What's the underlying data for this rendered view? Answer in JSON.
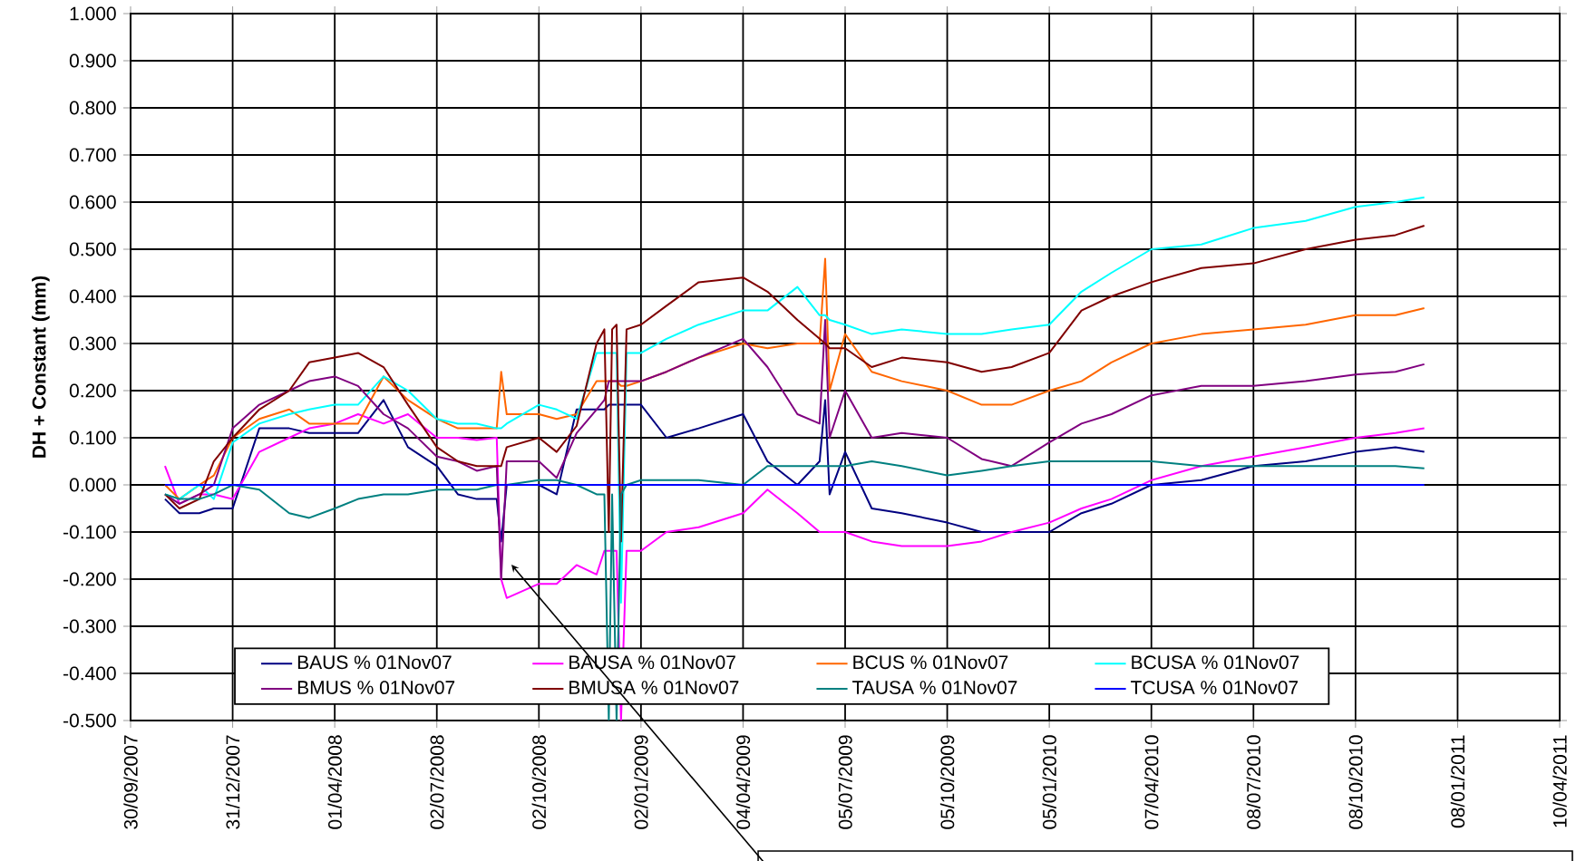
{
  "chart_data": {
    "type": "line",
    "ylabel": "DH + Constant (mm)",
    "x": [
      "2007-10-31",
      "2007-11-13",
      "2007-12-01",
      "2007-12-14",
      "2007-12-31",
      "2008-01-24",
      "2008-02-20",
      "2008-03-09",
      "2008-04-01",
      "2008-04-22",
      "2008-05-15",
      "2008-06-06",
      "2008-07-02",
      "2008-07-21",
      "2008-08-07",
      "2008-08-25",
      "2008-08-29",
      "2008-09-03",
      "2008-10-02",
      "2008-10-18",
      "2008-11-05",
      "2008-11-23",
      "2008-11-30",
      "2008-12-04",
      "2008-12-07",
      "2008-12-11",
      "2008-12-15",
      "2008-12-20",
      "2009-01-02",
      "2009-01-25",
      "2009-02-23",
      "2009-04-04",
      "2009-04-26",
      "2009-05-23",
      "2009-06-12",
      "2009-06-17",
      "2009-06-21",
      "2009-07-05",
      "2009-07-29",
      "2009-08-25",
      "2009-10-05",
      "2009-11-05",
      "2009-12-02",
      "2010-01-05",
      "2010-02-03",
      "2010-03-02",
      "2010-04-07",
      "2010-05-22",
      "2010-07-08",
      "2010-08-24",
      "2010-10-08",
      "2010-11-13",
      "2010-12-09"
    ],
    "series": [
      {
        "name": "BAUS % 01Nov07",
        "color": "#000080",
        "values": [
          -0.03,
          -0.06,
          -0.06,
          -0.05,
          -0.05,
          0.12,
          0.12,
          0.11,
          0.11,
          0.11,
          0.18,
          0.08,
          0.04,
          -0.02,
          -0.03,
          -0.03,
          -0.12,
          0.0,
          0.0,
          -0.02,
          0.16,
          0.16,
          0.16,
          0.17,
          0.17,
          0.17,
          0.17,
          0.17,
          0.17,
          0.1,
          0.12,
          0.15,
          0.05,
          0.0,
          0.05,
          0.18,
          -0.02,
          0.07,
          -0.05,
          -0.06,
          -0.08,
          -0.1,
          -0.1,
          -0.1,
          -0.06,
          -0.04,
          0.0,
          0.01,
          0.04,
          0.05,
          0.07,
          0.08,
          0.07
        ]
      },
      {
        "name": "BAUSA % 01Nov07",
        "color": "#ff00ff",
        "values": [
          0.04,
          -0.04,
          -0.02,
          -0.02,
          -0.03,
          0.07,
          0.1,
          0.12,
          0.13,
          0.15,
          0.13,
          0.15,
          0.1,
          0.1,
          0.095,
          0.1,
          -0.2,
          -0.24,
          -0.21,
          -0.21,
          -0.17,
          -0.19,
          -0.14,
          -0.14,
          -0.14,
          -0.14,
          -0.5,
          -0.14,
          -0.14,
          -0.1,
          -0.09,
          -0.06,
          -0.01,
          -0.06,
          -0.1,
          -0.1,
          -0.1,
          -0.1,
          -0.12,
          -0.13,
          -0.13,
          -0.12,
          -0.1,
          -0.08,
          -0.05,
          -0.03,
          0.01,
          0.04,
          0.06,
          0.08,
          0.1,
          0.11,
          0.12
        ]
      },
      {
        "name": "BCUS % 01Nov07",
        "color": "#ff6600",
        "values": [
          0.0,
          -0.03,
          0.0,
          0.02,
          0.1,
          0.14,
          0.16,
          0.13,
          0.13,
          0.13,
          0.23,
          0.18,
          0.14,
          0.12,
          0.12,
          0.12,
          0.24,
          0.15,
          0.15,
          0.14,
          0.15,
          0.22,
          0.22,
          0.22,
          0.22,
          0.22,
          0.21,
          0.21,
          0.22,
          0.24,
          0.27,
          0.3,
          0.29,
          0.3,
          0.3,
          0.48,
          0.2,
          0.32,
          0.24,
          0.22,
          0.2,
          0.17,
          0.17,
          0.2,
          0.22,
          0.26,
          0.3,
          0.32,
          0.33,
          0.34,
          0.36,
          0.36,
          0.375
        ]
      },
      {
        "name": "BCUSA % 01Nov07",
        "color": "#00ffff",
        "values": [
          -0.02,
          -0.03,
          0.0,
          -0.03,
          0.09,
          0.13,
          0.15,
          0.16,
          0.17,
          0.17,
          0.23,
          0.2,
          0.14,
          0.13,
          0.13,
          0.12,
          0.12,
          0.13,
          0.17,
          0.16,
          0.14,
          0.28,
          0.28,
          0.28,
          0.28,
          0.28,
          -0.25,
          0.28,
          0.28,
          0.31,
          0.34,
          0.37,
          0.37,
          0.42,
          0.36,
          0.36,
          0.35,
          0.34,
          0.32,
          0.33,
          0.32,
          0.32,
          0.33,
          0.34,
          0.41,
          0.45,
          0.5,
          0.51,
          0.545,
          0.56,
          0.59,
          0.6,
          0.61
        ]
      },
      {
        "name": "BMUS % 01Nov07",
        "color": "#800080",
        "values": [
          -0.02,
          -0.04,
          -0.02,
          0.0,
          0.12,
          0.17,
          0.2,
          0.22,
          0.23,
          0.21,
          0.15,
          0.12,
          0.06,
          0.05,
          0.03,
          0.04,
          -0.2,
          0.05,
          0.05,
          0.015,
          0.11,
          0.16,
          0.18,
          0.22,
          0.22,
          0.22,
          0.22,
          0.22,
          0.22,
          0.24,
          0.27,
          0.31,
          0.25,
          0.15,
          0.13,
          0.35,
          0.1,
          0.2,
          0.1,
          0.11,
          0.1,
          0.055,
          0.04,
          0.09,
          0.13,
          0.15,
          0.19,
          0.21,
          0.21,
          0.22,
          0.234,
          0.24,
          0.256
        ]
      },
      {
        "name": "BMUSA % 01Nov07",
        "color": "#800000",
        "values": [
          -0.02,
          -0.05,
          -0.03,
          0.05,
          0.1,
          0.16,
          0.2,
          0.26,
          0.27,
          0.28,
          0.25,
          0.17,
          0.08,
          0.05,
          0.04,
          0.04,
          0.04,
          0.08,
          0.1,
          0.07,
          0.125,
          0.3,
          0.33,
          -0.1,
          0.33,
          0.34,
          -0.12,
          0.33,
          0.34,
          0.38,
          0.43,
          0.44,
          0.41,
          0.35,
          0.31,
          0.3,
          0.29,
          0.29,
          0.25,
          0.27,
          0.26,
          0.24,
          0.25,
          0.28,
          0.37,
          0.4,
          0.43,
          0.46,
          0.47,
          0.5,
          0.52,
          0.53,
          0.55
        ]
      },
      {
        "name": "TAUSA % 01Nov07",
        "color": "#008080",
        "values": [
          -0.02,
          -0.03,
          -0.03,
          -0.02,
          0.0,
          -0.01,
          -0.06,
          -0.07,
          -0.05,
          -0.03,
          -0.02,
          -0.02,
          -0.01,
          -0.01,
          -0.01,
          0.0,
          0.0,
          0.0,
          0.01,
          0.01,
          0.0,
          -0.02,
          -0.02,
          -0.5,
          -0.02,
          -0.5,
          -0.02,
          0.0,
          0.01,
          0.01,
          0.01,
          0.0,
          0.04,
          0.04,
          0.04,
          0.04,
          0.04,
          0.04,
          0.05,
          0.04,
          0.02,
          0.03,
          0.04,
          0.05,
          0.05,
          0.05,
          0.05,
          0.04,
          0.04,
          0.04,
          0.04,
          0.04,
          0.035
        ]
      },
      {
        "name": "TCUSA % 01Nov07",
        "color": "#0000ff",
        "values": [
          0,
          0,
          0,
          0,
          0,
          0,
          0,
          0,
          0,
          0,
          0,
          0,
          0,
          0,
          0,
          0,
          0,
          0,
          0,
          0,
          0,
          0,
          0,
          0,
          0,
          0,
          0,
          0,
          0,
          0,
          0,
          0,
          0,
          0,
          0,
          0,
          0,
          0,
          0,
          0,
          0,
          0,
          0,
          0,
          0,
          0,
          0,
          0,
          0,
          0,
          0,
          0,
          0
        ]
      }
    ],
    "xlim": [
      "2007-09-30",
      "2011-04-10"
    ],
    "xticks": [
      {
        "value": "2007-09-30",
        "label": "30/09/2007"
      },
      {
        "value": "2007-12-31",
        "label": "31/12/2007"
      },
      {
        "value": "2008-04-01",
        "label": "01/04/2008"
      },
      {
        "value": "2008-07-02",
        "label": "02/07/2008"
      },
      {
        "value": "2008-10-02",
        "label": "02/10/2008"
      },
      {
        "value": "2009-01-02",
        "label": "02/01/2009"
      },
      {
        "value": "2009-04-04",
        "label": "04/04/2009"
      },
      {
        "value": "2009-07-05",
        "label": "05/07/2009"
      },
      {
        "value": "2009-10-05",
        "label": "05/10/2009"
      },
      {
        "value": "2010-01-05",
        "label": "05/01/2010"
      },
      {
        "value": "2010-04-07",
        "label": "07/04/2010"
      },
      {
        "value": "2010-07-08",
        "label": "08/07/2010"
      },
      {
        "value": "2010-10-08",
        "label": "08/10/2010"
      },
      {
        "value": "2011-01-08",
        "label": "08/01/2011"
      },
      {
        "value": "2011-04-10",
        "label": "10/04/2011"
      }
    ],
    "ylim": [
      -0.5,
      1.0
    ],
    "yticks": [
      {
        "value": -0.5,
        "label": "-0.500"
      },
      {
        "value": -0.4,
        "label": "-0.400"
      },
      {
        "value": -0.3,
        "label": "-0.300"
      },
      {
        "value": -0.2,
        "label": "-0.200"
      },
      {
        "value": -0.1,
        "label": "-0.100"
      },
      {
        "value": 0,
        "label": "0.000"
      },
      {
        "value": 0.1,
        "label": "0.100"
      },
      {
        "value": 0.2,
        "label": "0.200"
      },
      {
        "value": 0.3,
        "label": "0.300"
      },
      {
        "value": 0.4,
        "label": "0.400"
      },
      {
        "value": 0.5,
        "label": "0.500"
      },
      {
        "value": 0.6,
        "label": "0.600"
      },
      {
        "value": 0.7,
        "label": "0.700"
      },
      {
        "value": 0.8,
        "label": "0.800"
      },
      {
        "value": 0.9,
        "label": "0.900"
      },
      {
        "value": 1.0,
        "label": "1.000"
      }
    ],
    "grid": true,
    "legend": "bottom",
    "marker": "none",
    "line_style": "solid"
  }
}
